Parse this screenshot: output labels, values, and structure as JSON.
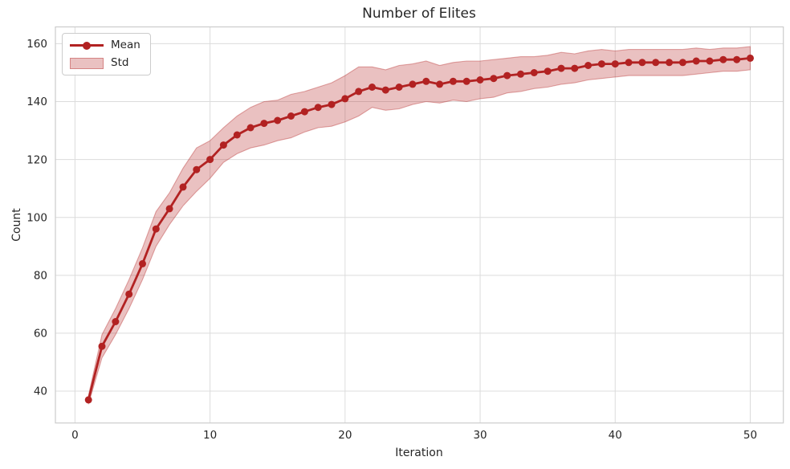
{
  "chart_data": {
    "type": "line",
    "title": "Number of Elites",
    "xlabel": "Iteration",
    "ylabel": "Count",
    "x": [
      1,
      2,
      3,
      4,
      5,
      6,
      7,
      8,
      9,
      10,
      11,
      12,
      13,
      14,
      15,
      16,
      17,
      18,
      19,
      20,
      21,
      22,
      23,
      24,
      25,
      26,
      27,
      28,
      29,
      30,
      31,
      32,
      33,
      34,
      35,
      36,
      37,
      38,
      39,
      40,
      41,
      42,
      43,
      44,
      45,
      46,
      47,
      48,
      49,
      50
    ],
    "series": [
      {
        "name": "Mean",
        "kind": "line_with_markers",
        "color": "#b22222",
        "values": [
          37,
          55.5,
          64,
          73.5,
          84,
          96,
          103,
          110.5,
          116.5,
          120,
          125,
          128.5,
          131,
          132.5,
          133.5,
          135,
          136.5,
          138,
          139,
          141,
          143.5,
          145,
          144,
          145,
          146,
          147,
          146,
          147,
          147,
          147.5,
          148,
          149,
          149.5,
          150,
          150.5,
          151.5,
          151.5,
          152.5,
          153,
          153,
          153.5,
          153.5,
          153.5,
          153.5,
          153.5,
          154,
          154,
          154.5,
          154.5,
          155
        ]
      },
      {
        "name": "Std",
        "kind": "band_mean_plus_minus_std",
        "fill": "rgba(178,34,34,0.28)",
        "std": [
          1.5,
          4,
          4.5,
          5,
          5.5,
          6,
          5.5,
          6.5,
          7.5,
          6.5,
          6,
          6.5,
          7,
          7.5,
          7,
          7.5,
          7,
          7,
          7.5,
          8,
          8.5,
          7,
          7,
          7.5,
          7,
          7,
          6.5,
          6.5,
          7,
          6.5,
          6.5,
          6,
          6,
          5.5,
          5.5,
          5.5,
          5,
          5,
          5,
          4.5,
          4.5,
          4.5,
          4.5,
          4.5,
          4.5,
          4.5,
          4,
          4,
          4,
          4
        ]
      }
    ],
    "xticks": [
      0,
      10,
      20,
      30,
      40,
      50
    ],
    "yticks": [
      40,
      60,
      80,
      100,
      120,
      140,
      160
    ],
    "xlim": [
      -1.45,
      52.45
    ],
    "ylim": [
      29,
      165.8
    ],
    "grid": true,
    "legend": {
      "position": "upper left",
      "entries": [
        "Mean",
        "Std"
      ]
    }
  },
  "style": {
    "line_color": "#b22222",
    "band_fill": "rgba(178,34,34,0.28)",
    "band_edge": "rgba(178,34,34,0.38)",
    "grid_color": "#dcdcdc",
    "spine_color": "#cccccc",
    "text_color": "#262626",
    "background": "#ffffff"
  }
}
